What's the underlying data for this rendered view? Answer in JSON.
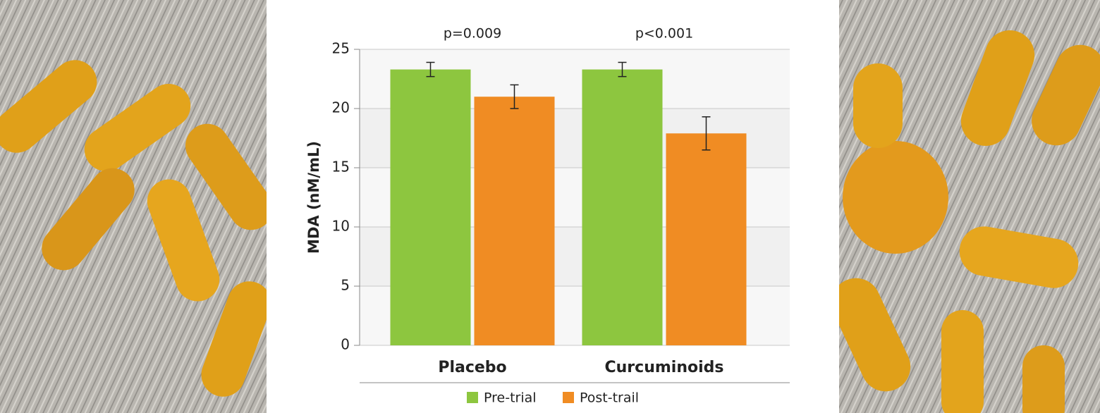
{
  "chart_data": {
    "type": "bar",
    "y_label": "MDA (nM/mL)",
    "categories": [
      "Placebo",
      "Curcuminoids"
    ],
    "annotations": [
      "p=0.009",
      "p<0.001"
    ],
    "series": [
      {
        "name": "Pre-trial",
        "color": "#8dc63f",
        "values": [
          23.3,
          23.3
        ],
        "errors": [
          0.6,
          0.6
        ]
      },
      {
        "name": "Post-trail",
        "color": "#f08c23",
        "values": [
          21.0,
          17.9
        ],
        "errors": [
          1.0,
          1.4
        ]
      }
    ],
    "ylim": [
      0,
      25
    ],
    "yticks": [
      0,
      5,
      10,
      15,
      20,
      25
    ],
    "grid": true,
    "legend": "bottom"
  }
}
